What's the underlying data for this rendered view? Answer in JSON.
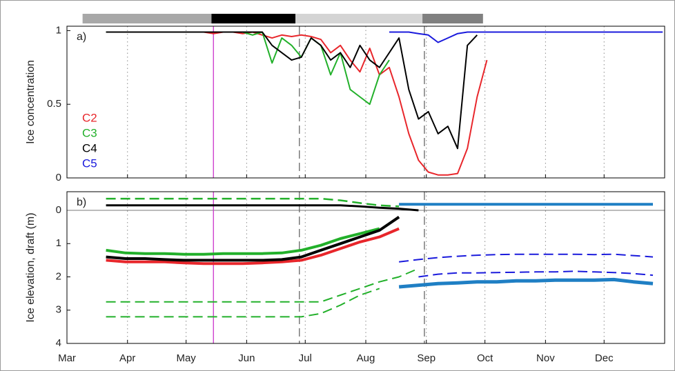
{
  "chart_data": [
    {
      "type": "line",
      "panel_label": "a)",
      "ylabel": "Ice concentration",
      "xlim": [
        60,
        366
      ],
      "ylim": [
        0,
        1.03
      ],
      "yticks": [
        0,
        0.5,
        1
      ],
      "legend": "left",
      "season_bar": [
        {
          "start": 68,
          "end": 134,
          "color": "#a8a8a8"
        },
        {
          "start": 134,
          "end": 177,
          "color": "#000000"
        },
        {
          "start": 177,
          "end": 242,
          "color": "#d4d4d4"
        },
        {
          "start": 242,
          "end": 273,
          "color": "#808080"
        }
      ],
      "vlines": [
        {
          "x": 135,
          "color": "#cc33cc"
        },
        {
          "x": 179,
          "color": "#666666",
          "dash": true
        },
        {
          "x": 243,
          "color": "#666666",
          "dash": true
        }
      ],
      "x": [
        75,
        80,
        85,
        90,
        95,
        100,
        105,
        110,
        115,
        120,
        125,
        130,
        135,
        140,
        145,
        150,
        155,
        160,
        165,
        170,
        175,
        180,
        185,
        190,
        195,
        200,
        205,
        210,
        215,
        220,
        225,
        230,
        235,
        240,
        245,
        250,
        255,
        260,
        265,
        270,
        275,
        280,
        285,
        290,
        295,
        300,
        305,
        310,
        315,
        320,
        325,
        330,
        335,
        340,
        345,
        350,
        355,
        360,
        365
      ],
      "series": [
        {
          "name": "C2",
          "color": "#e8262b",
          "values": [
            null,
            0.99,
            0.99,
            0.99,
            0.99,
            0.99,
            0.99,
            0.99,
            0.99,
            0.99,
            0.99,
            0.99,
            0.98,
            0.99,
            0.99,
            0.98,
            0.99,
            0.97,
            0.95,
            0.97,
            0.96,
            0.97,
            0.96,
            0.94,
            0.85,
            0.9,
            0.8,
            0.72,
            0.88,
            0.7,
            0.75,
            0.55,
            0.3,
            0.12,
            0.04,
            0.02,
            0.02,
            0.03,
            0.2,
            0.55,
            0.8,
            null,
            null,
            null,
            null,
            null,
            null,
            null,
            null,
            null,
            null,
            null,
            null,
            null,
            null,
            null,
            null,
            null,
            null
          ]
        },
        {
          "name": "C3",
          "color": "#22b02a",
          "values": [
            null,
            0.99,
            0.99,
            0.99,
            0.99,
            0.99,
            0.99,
            0.99,
            0.99,
            0.99,
            0.99,
            0.99,
            0.99,
            0.99,
            0.99,
            0.99,
            0.97,
            0.99,
            0.78,
            0.95,
            0.9,
            0.82,
            0.95,
            0.9,
            0.7,
            0.85,
            0.6,
            0.55,
            0.5,
            0.7,
            0.8,
            null,
            null,
            null,
            null,
            null,
            null,
            null,
            null,
            null,
            null,
            null,
            null,
            null,
            null,
            null,
            null,
            null,
            null,
            null,
            null,
            null,
            null,
            null,
            null,
            null,
            null,
            null,
            null
          ]
        },
        {
          "name": "C4",
          "color": "#000000",
          "values": [
            null,
            0.99,
            0.99,
            0.99,
            0.99,
            0.99,
            0.99,
            0.99,
            0.99,
            0.99,
            0.99,
            0.99,
            0.99,
            0.99,
            0.99,
            0.99,
            0.99,
            0.99,
            0.9,
            0.85,
            0.8,
            0.82,
            0.95,
            0.9,
            0.8,
            0.85,
            0.75,
            0.9,
            0.8,
            0.75,
            0.85,
            0.95,
            0.6,
            0.4,
            0.45,
            0.3,
            0.35,
            0.2,
            0.9,
            0.97,
            null,
            null,
            null,
            null,
            null,
            null,
            null,
            null,
            null,
            null,
            null,
            null,
            null,
            null,
            null,
            null,
            null,
            null,
            null
          ]
        },
        {
          "name": "C5",
          "color": "#1a1adc",
          "values": [
            null,
            null,
            null,
            null,
            null,
            null,
            null,
            null,
            null,
            null,
            null,
            null,
            null,
            null,
            null,
            null,
            null,
            null,
            null,
            null,
            null,
            null,
            null,
            null,
            null,
            null,
            null,
            null,
            null,
            null,
            0.99,
            0.99,
            0.99,
            0.98,
            0.97,
            0.92,
            0.95,
            0.98,
            0.99,
            0.99,
            0.99,
            0.99,
            0.99,
            0.99,
            0.99,
            0.99,
            0.99,
            0.99,
            0.99,
            0.99,
            0.99,
            0.99,
            0.99,
            0.99,
            0.99,
            0.99,
            0.99,
            0.99,
            0.99
          ]
        }
      ]
    },
    {
      "type": "line",
      "panel_label": "b)",
      "ylabel": "Ice elevation, draft (m)",
      "xlim": [
        60,
        366
      ],
      "ylim": [
        -0.56,
        4
      ],
      "y_reversed": true,
      "yticks": [
        0,
        1,
        2,
        3,
        4
      ],
      "xticks": [
        {
          "value": 60,
          "label": "Mar"
        },
        {
          "value": 91,
          "label": "Apr"
        },
        {
          "value": 121,
          "label": "May"
        },
        {
          "value": 152,
          "label": "Jun"
        },
        {
          "value": 182,
          "label": "Jul"
        },
        {
          "value": 213,
          "label": "Aug"
        },
        {
          "value": 244,
          "label": "Sep"
        },
        {
          "value": 274,
          "label": "Oct"
        },
        {
          "value": 305,
          "label": "Nov"
        },
        {
          "value": 335,
          "label": "Dec"
        }
      ],
      "x": [
        70,
        80,
        90,
        100,
        110,
        120,
        130,
        140,
        150,
        160,
        170,
        180,
        190,
        200,
        210,
        220,
        230,
        240,
        250,
        260,
        270,
        280,
        290,
        300,
        310,
        320,
        330,
        340,
        350,
        360
      ],
      "series": [
        {
          "color": "#22b02a",
          "dash": true,
          "width": 2.5,
          "values": [
            null,
            -0.35,
            -0.35,
            -0.35,
            -0.35,
            -0.35,
            -0.35,
            -0.35,
            -0.35,
            -0.35,
            -0.35,
            -0.35,
            -0.35,
            -0.3,
            -0.22,
            -0.15,
            -0.12,
            null,
            null,
            null,
            null,
            null,
            null,
            null,
            null,
            null,
            null,
            null,
            null,
            null
          ]
        },
        {
          "color": "#000000",
          "width": 3,
          "values": [
            null,
            -0.15,
            -0.15,
            -0.15,
            -0.15,
            -0.15,
            -0.15,
            -0.15,
            -0.15,
            -0.15,
            -0.15,
            -0.15,
            -0.15,
            -0.15,
            -0.12,
            -0.08,
            -0.05,
            0,
            null,
            null,
            null,
            null,
            null,
            null,
            null,
            null,
            null,
            null,
            null,
            null
          ]
        },
        {
          "color": "#1f7fc4",
          "width": 4,
          "values": [
            null,
            null,
            null,
            null,
            null,
            null,
            null,
            null,
            null,
            null,
            null,
            null,
            null,
            null,
            null,
            null,
            -0.18,
            -0.18,
            -0.18,
            -0.18,
            -0.18,
            -0.18,
            -0.18,
            -0.18,
            -0.18,
            -0.18,
            -0.18,
            -0.18,
            -0.18,
            -0.18
          ]
        },
        {
          "color": "#e8262b",
          "width": 4,
          "values": [
            null,
            1.5,
            1.55,
            1.55,
            1.55,
            1.58,
            1.6,
            1.6,
            1.6,
            1.58,
            1.55,
            1.5,
            1.35,
            1.15,
            0.95,
            0.8,
            0.55,
            null,
            null,
            null,
            null,
            null,
            null,
            null,
            null,
            null,
            null,
            null,
            null,
            null
          ]
        },
        {
          "color": "#22b02a",
          "width": 4,
          "values": [
            null,
            1.2,
            1.28,
            1.3,
            1.3,
            1.32,
            1.32,
            1.3,
            1.3,
            1.3,
            1.28,
            1.2,
            1.05,
            0.85,
            0.7,
            0.55,
            null,
            null,
            null,
            null,
            null,
            null,
            null,
            null,
            null,
            null,
            null,
            null,
            null,
            null
          ]
        },
        {
          "color": "#000000",
          "width": 4,
          "values": [
            null,
            1.4,
            1.45,
            1.45,
            1.48,
            1.5,
            1.5,
            1.5,
            1.5,
            1.5,
            1.48,
            1.4,
            1.2,
            1.0,
            0.8,
            0.6,
            0.2,
            null,
            null,
            null,
            null,
            null,
            null,
            null,
            null,
            null,
            null,
            null,
            null,
            null
          ]
        },
        {
          "color": "#1f7fc4",
          "width": 5,
          "values": [
            null,
            null,
            null,
            null,
            null,
            null,
            null,
            null,
            null,
            null,
            null,
            null,
            null,
            null,
            null,
            null,
            2.3,
            2.25,
            2.2,
            2.18,
            2.15,
            2.15,
            2.12,
            2.12,
            2.1,
            2.1,
            2.1,
            2.08,
            2.15,
            2.2
          ]
        },
        {
          "color": "#22b02a",
          "dash": true,
          "width": 2,
          "values": [
            null,
            2.75,
            2.75,
            2.75,
            2.75,
            2.75,
            2.75,
            2.75,
            2.75,
            2.75,
            2.75,
            2.75,
            2.75,
            2.55,
            2.35,
            2.15,
            2.0,
            1.75,
            null,
            null,
            null,
            null,
            null,
            null,
            null,
            null,
            null,
            null,
            null,
            null
          ]
        },
        {
          "color": "#22b02a",
          "dash": true,
          "width": 2,
          "values": [
            null,
            3.2,
            3.2,
            3.2,
            3.2,
            3.2,
            3.2,
            3.2,
            3.2,
            3.2,
            3.2,
            3.2,
            3.1,
            2.85,
            2.55,
            2.35,
            null,
            null,
            null,
            null,
            null,
            null,
            null,
            null,
            null,
            null,
            null,
            null,
            null,
            null
          ]
        },
        {
          "color": "#1a1adc",
          "dash": true,
          "width": 2,
          "values": [
            null,
            null,
            null,
            null,
            null,
            null,
            null,
            null,
            null,
            null,
            null,
            null,
            null,
            null,
            null,
            null,
            1.55,
            1.48,
            1.42,
            1.38,
            1.35,
            1.33,
            1.32,
            1.32,
            1.32,
            1.32,
            1.33,
            1.32,
            1.36,
            1.4
          ]
        },
        {
          "color": "#1a1adc",
          "dash": true,
          "width": 2,
          "values": [
            null,
            null,
            null,
            null,
            null,
            null,
            null,
            null,
            null,
            null,
            null,
            null,
            null,
            null,
            null,
            null,
            null,
            2.0,
            1.92,
            1.88,
            1.88,
            1.87,
            1.86,
            1.85,
            1.85,
            1.83,
            1.85,
            1.87,
            1.9,
            1.95
          ]
        }
      ]
    }
  ]
}
